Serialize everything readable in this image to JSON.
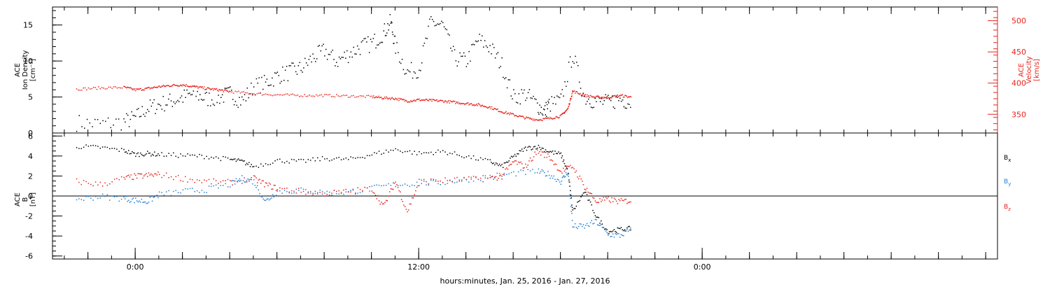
{
  "chart_data": [
    {
      "type": "scatter",
      "panel": "top",
      "left_axis": {
        "label_lines": [
          "ACE",
          "Ion Density",
          "[cm⁻³]"
        ],
        "ylim": [
          0,
          17.5
        ],
        "ticks": [
          "0",
          "5",
          "10",
          "15"
        ],
        "tick_values": [
          0,
          5,
          10,
          15
        ],
        "color": "#000000"
      },
      "right_axis": {
        "label_lines": [
          "ACE",
          "Velocity",
          "[km/s]"
        ],
        "ylim": [
          320,
          522
        ],
        "ticks": [
          "350",
          "400",
          "450",
          "500"
        ],
        "tick_values": [
          350,
          400,
          450,
          500
        ],
        "color": "#e8221c"
      },
      "series": [
        {
          "color": "#000000",
          "axis": "left",
          "x": [
            -2.5,
            -1.5,
            -0.5,
            0.0,
            0.5,
            1.0,
            1.5,
            2.0,
            2.5,
            3.0,
            3.5,
            4.0,
            4.5,
            5.0,
            5.5,
            6.0,
            6.5,
            7.0,
            7.5,
            8.0,
            8.5,
            9.0,
            9.5,
            10.0,
            10.5,
            10.8,
            11.0,
            11.5,
            12.0,
            12.5,
            13.0,
            13.5,
            14.0,
            14.5,
            15.0,
            15.5,
            16.0,
            16.5,
            17.0,
            17.3,
            17.5,
            18.0,
            18.5,
            19.0,
            19.5,
            20.0,
            20.5,
            21.0
          ],
          "y": [
            1.5,
            1.3,
            1.6,
            2.2,
            3.5,
            4.0,
            4.5,
            5.0,
            5.5,
            4.8,
            5.0,
            5.5,
            4.5,
            6.5,
            7.0,
            8.0,
            8.5,
            9.0,
            10.5,
            11.5,
            10.0,
            11.0,
            12.0,
            12.5,
            14.0,
            15.5,
            12.0,
            8.5,
            9.0,
            15.5,
            15.0,
            10.5,
            10.0,
            13.0,
            12.0,
            9.5,
            5.0,
            5.5,
            4.0,
            3.0,
            4.0,
            4.5,
            11.0,
            5.0,
            4.5,
            4.2,
            4.8,
            4.3
          ]
        },
        {
          "color": "#e8221c",
          "axis": "right",
          "x": [
            -2.5,
            -1.5,
            -0.5,
            0.0,
            0.5,
            1.0,
            1.5,
            2.0,
            2.5,
            3.0,
            3.5,
            4.0,
            5.0,
            6.0,
            7.0,
            8.0,
            9.0,
            10.0,
            10.5,
            11.0,
            11.5,
            12.0,
            12.5,
            13.0,
            13.5,
            14.0,
            14.5,
            15.0,
            15.5,
            16.0,
            16.5,
            17.0,
            17.5,
            18.0,
            18.3,
            18.5,
            19.0,
            19.5,
            20.0,
            20.5,
            21.0
          ],
          "y": [
            391,
            393,
            394,
            390,
            392,
            395,
            397,
            398,
            395,
            392,
            390,
            387,
            384,
            382,
            381,
            381,
            380,
            379,
            377,
            376,
            372,
            374,
            373,
            372,
            370,
            368,
            366,
            362,
            355,
            350,
            345,
            342,
            344,
            348,
            360,
            388,
            381,
            378,
            378,
            381,
            378
          ]
        }
      ]
    },
    {
      "type": "scatter",
      "panel": "bottom",
      "left_axis": {
        "label_lines": [
          "ACE",
          "B",
          "[nT]"
        ],
        "ylim": [
          -6.3,
          6.3
        ],
        "ticks": [
          "-6",
          "-4",
          "-2",
          "0",
          "2",
          "4",
          "6"
        ],
        "tick_values": [
          -6,
          -4,
          -2,
          0,
          2,
          4,
          6
        ],
        "color": "#000000"
      },
      "zero_line": true,
      "legend_position": "right",
      "legend": [
        {
          "main": "B",
          "sub": "x",
          "color": "#000000"
        },
        {
          "main": "B",
          "sub": "y",
          "color": "#1f7fd4"
        },
        {
          "main": "B",
          "sub": "z",
          "color": "#e8221c"
        }
      ],
      "series": [
        {
          "name": "Bx",
          "color": "#000000",
          "x": [
            -2.5,
            -1.5,
            -0.5,
            0.0,
            0.5,
            1.0,
            2.0,
            3.0,
            4.0,
            4.5,
            5.0,
            6.0,
            7.0,
            8.0,
            9.0,
            10.0,
            11.0,
            12.0,
            13.0,
            14.0,
            15.0,
            15.5,
            16.0,
            16.5,
            17.0,
            17.5,
            18.0,
            18.3,
            18.5,
            19.0,
            19.5,
            20.0,
            20.5,
            21.0
          ],
          "y": [
            5.0,
            4.9,
            4.6,
            4.2,
            4.3,
            4.2,
            4.1,
            4.0,
            3.7,
            3.5,
            3.0,
            3.6,
            3.5,
            3.8,
            3.7,
            4.2,
            4.7,
            4.3,
            4.5,
            4.0,
            3.5,
            3.0,
            4.0,
            4.8,
            5.0,
            4.5,
            4.2,
            2.5,
            -1.5,
            0.5,
            -2.0,
            -3.5,
            -3.3,
            -3.2
          ]
        },
        {
          "name": "By",
          "color": "#1f7fd4",
          "x": [
            -2.5,
            -1.5,
            -0.5,
            0.0,
            0.5,
            1.0,
            2.0,
            3.0,
            4.0,
            4.5,
            5.0,
            5.5,
            6.0,
            7.0,
            8.0,
            9.0,
            10.0,
            11.0,
            12.0,
            13.0,
            14.0,
            15.0,
            16.0,
            17.0,
            17.5,
            18.0,
            18.3,
            18.5,
            19.0,
            19.5,
            20.0,
            20.5,
            21.0
          ],
          "y": [
            -0.3,
            0.0,
            -0.2,
            -0.4,
            -0.5,
            0.2,
            0.5,
            0.7,
            1.2,
            1.8,
            1.5,
            -0.5,
            0.5,
            0.6,
            0.4,
            0.4,
            0.8,
            1.2,
            1.3,
            1.4,
            1.7,
            2.0,
            2.3,
            2.5,
            2.2,
            1.5,
            2.5,
            -3.0,
            -3.0,
            -2.5,
            -3.8,
            -3.9,
            -3.3
          ]
        },
        {
          "name": "Bz",
          "color": "#e8221c",
          "x": [
            -2.5,
            -1.5,
            -0.5,
            0.0,
            0.5,
            1.0,
            2.0,
            3.0,
            4.0,
            5.0,
            5.5,
            6.0,
            7.0,
            8.0,
            9.0,
            10.0,
            10.5,
            11.0,
            11.5,
            12.0,
            13.0,
            14.0,
            15.0,
            15.5,
            16.0,
            16.5,
            17.0,
            17.5,
            18.0,
            18.5,
            19.0,
            19.5,
            20.0,
            20.5,
            21.0
          ],
          "y": [
            1.5,
            1.2,
            1.8,
            2.0,
            2.1,
            2.2,
            1.8,
            1.5,
            1.4,
            1.8,
            1.2,
            0.8,
            0.5,
            0.3,
            0.5,
            0.8,
            -1.0,
            1.5,
            -1.5,
            1.5,
            1.6,
            1.7,
            1.8,
            2.0,
            3.5,
            3.0,
            4.5,
            4.0,
            2.5,
            3.0,
            1.0,
            -0.5,
            -0.3,
            -0.5,
            -0.4
          ]
        }
      ]
    }
  ],
  "x_axis": {
    "range": [
      -3.5,
      36.5
    ],
    "ticks": [
      {
        "value": 0,
        "label": "0:00"
      },
      {
        "value": 12,
        "label": "12:00"
      },
      {
        "value": 24,
        "label": "0:00"
      }
    ],
    "label": "hours:minutes, Jan. 25, 2016 - Jan. 27, 2016"
  }
}
